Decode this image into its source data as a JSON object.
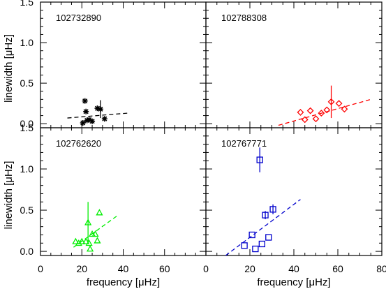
{
  "chart_data": [
    {
      "type": "scatter",
      "panel": "top-left",
      "title": "102732890",
      "xlim": [
        0,
        80
      ],
      "ylim": [
        -0.05,
        1.5
      ],
      "color": "#000000",
      "marker": "asterisk",
      "points": [
        {
          "x": 20.5,
          "y": 0.01,
          "err": 0.0
        },
        {
          "x": 21.5,
          "y": 0.28,
          "err": 0.0
        },
        {
          "x": 22.0,
          "y": 0.15,
          "err": 0.0
        },
        {
          "x": 22.5,
          "y": 0.04,
          "err": 0.0
        },
        {
          "x": 23.5,
          "y": 0.05,
          "err": 0.0
        },
        {
          "x": 25.0,
          "y": 0.03,
          "err": 0.0
        },
        {
          "x": 27.5,
          "y": 0.19,
          "err": 0.0
        },
        {
          "x": 29.0,
          "y": 0.18,
          "err": 0.11
        },
        {
          "x": 31.0,
          "y": 0.06,
          "err": 0.0
        }
      ],
      "fit": {
        "x": [
          13,
          42
        ],
        "y": [
          0.07,
          0.13
        ]
      }
    },
    {
      "type": "scatter",
      "panel": "top-right",
      "title": "102788308",
      "xlim": [
        0,
        80
      ],
      "ylim": [
        -0.05,
        1.5
      ],
      "color": "#ff0000",
      "marker": "diamond",
      "points": [
        {
          "x": 43.0,
          "y": 0.14,
          "err": 0.0
        },
        {
          "x": 45.0,
          "y": 0.05,
          "err": 0.0
        },
        {
          "x": 47.5,
          "y": 0.16,
          "err": 0.0
        },
        {
          "x": 50.0,
          "y": 0.06,
          "err": 0.0
        },
        {
          "x": 52.5,
          "y": 0.13,
          "err": 0.0
        },
        {
          "x": 55.0,
          "y": 0.17,
          "err": 0.0
        },
        {
          "x": 57.0,
          "y": 0.27,
          "err": 0.2
        },
        {
          "x": 60.5,
          "y": 0.25,
          "err": 0.0
        },
        {
          "x": 63.0,
          "y": 0.18,
          "err": 0.0
        }
      ],
      "fit": {
        "x": [
          33,
          75
        ],
        "y": [
          -0.02,
          0.3
        ]
      }
    },
    {
      "type": "scatter",
      "panel": "bottom-left",
      "title": "102762620",
      "xlim": [
        0,
        80
      ],
      "ylim": [
        -0.05,
        1.5
      ],
      "color": "#00ee00",
      "marker": "triangle",
      "points": [
        {
          "x": 17.0,
          "y": 0.12,
          "err": 0.0
        },
        {
          "x": 18.5,
          "y": 0.1,
          "err": 0.0
        },
        {
          "x": 20.0,
          "y": 0.12,
          "err": 0.0
        },
        {
          "x": 22.0,
          "y": 0.12,
          "err": 0.0
        },
        {
          "x": 23.0,
          "y": 0.35,
          "err": 0.25
        },
        {
          "x": 23.5,
          "y": 0.1,
          "err": 0.0
        },
        {
          "x": 24.0,
          "y": 0.03,
          "err": 0.0
        },
        {
          "x": 25.0,
          "y": 0.21,
          "err": 0.0
        },
        {
          "x": 26.5,
          "y": 0.21,
          "err": 0.0
        },
        {
          "x": 27.5,
          "y": 0.13,
          "err": 0.0
        },
        {
          "x": 28.5,
          "y": 0.47,
          "err": 0.0
        }
      ],
      "fit": {
        "x": [
          16,
          37
        ],
        "y": [
          0.05,
          0.43
        ]
      }
    },
    {
      "type": "scatter",
      "panel": "bottom-right",
      "title": "102767771",
      "xlim": [
        0,
        80
      ],
      "ylim": [
        -0.05,
        1.5
      ],
      "color": "#0000cc",
      "marker": "square",
      "points": [
        {
          "x": 17.5,
          "y": 0.07,
          "err": 0.0
        },
        {
          "x": 21.0,
          "y": 0.2,
          "err": 0.0
        },
        {
          "x": 22.5,
          "y": 0.03,
          "err": 0.0
        },
        {
          "x": 24.5,
          "y": 1.11,
          "err": 0.15
        },
        {
          "x": 25.5,
          "y": 0.09,
          "err": 0.0
        },
        {
          "x": 27.0,
          "y": 0.44,
          "err": 0.05
        },
        {
          "x": 28.5,
          "y": 0.17,
          "err": 0.0
        },
        {
          "x": 30.5,
          "y": 0.51,
          "err": 0.06
        }
      ],
      "fit": {
        "x": [
          9,
          43
        ],
        "y": [
          -0.05,
          0.63
        ]
      }
    }
  ],
  "axes": {
    "xlabel_prefix": "frequency ",
    "xlabel_unit": "[μHz]",
    "ylabel_prefix": "linewidth ",
    "ylabel_unit": "[μHz]",
    "x_ticks": [
      0,
      20,
      40,
      60,
      80
    ],
    "y_ticks": [
      "0.0",
      "0.5",
      "1.0",
      "1.5"
    ],
    "y_tick_values": [
      0.0,
      0.5,
      1.0,
      1.5
    ]
  }
}
